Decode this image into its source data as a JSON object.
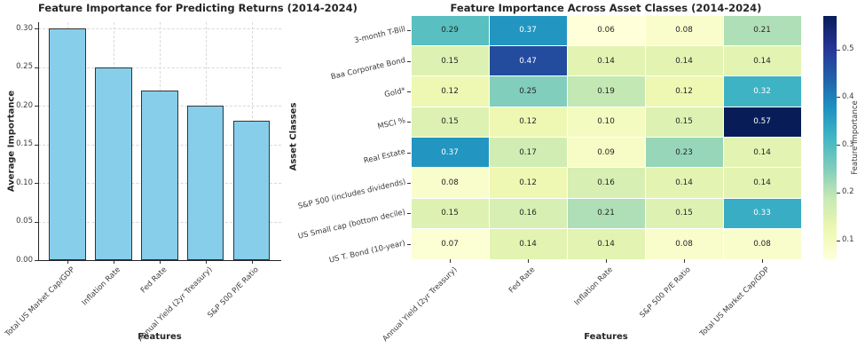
{
  "chart_data": [
    {
      "type": "bar",
      "title": "Feature Importance for Predicting Returns (2014-2024)",
      "categories": [
        "Total US Market Cap/GDP",
        "Inflation Rate",
        "Fed Rate",
        "Annual Yield (2yr Treasury)",
        "S&P 500 P/E Ratio"
      ],
      "values": [
        0.3,
        0.25,
        0.22,
        0.2,
        0.18
      ],
      "xlabel": "Features",
      "ylabel": "Average Importance",
      "yticks": [
        0.0,
        0.05,
        0.1,
        0.15,
        0.2,
        0.25,
        0.3
      ],
      "ylim": [
        0,
        0.308
      ],
      "grid": true,
      "bar_color": "#87ceeb",
      "bar_edge_color": "#333333"
    },
    {
      "type": "heatmap",
      "title": "Feature Importance Across Asset Classes (2014-2024)",
      "rows": [
        "3-month T-Bill",
        "Baa Corporate Bond",
        "Gold*",
        "MSCI %",
        "Real Estate",
        "S&P 500 (includes dividends)",
        "US Small cap (bottom decile)",
        "US T. Bond (10-year)"
      ],
      "columns": [
        "Annual Yield (2yr Treasury)",
        "Fed Rate",
        "Inflation Rate",
        "S&P 500 P/E Ratio",
        "Total US Market Cap/GDP"
      ],
      "values": [
        [
          0.29,
          0.37,
          0.06,
          0.08,
          0.21
        ],
        [
          0.15,
          0.47,
          0.14,
          0.14,
          0.14
        ],
        [
          0.12,
          0.25,
          0.19,
          0.12,
          0.32
        ],
        [
          0.15,
          0.12,
          0.1,
          0.15,
          0.57
        ],
        [
          0.37,
          0.17,
          0.09,
          0.23,
          0.14
        ],
        [
          0.08,
          0.12,
          0.16,
          0.14,
          0.14
        ],
        [
          0.15,
          0.16,
          0.21,
          0.15,
          0.33
        ],
        [
          0.07,
          0.14,
          0.14,
          0.08,
          0.08
        ]
      ],
      "xlabel": "Features",
      "ylabel": "Asset Classes",
      "colorbar_label": "Feature Importance",
      "colorbar_ticks": [
        0.1,
        0.2,
        0.3,
        0.4,
        0.5
      ],
      "colormap": "YlGnBu",
      "vmin": 0.06,
      "vmax": 0.57,
      "legend_position": "right"
    }
  ]
}
